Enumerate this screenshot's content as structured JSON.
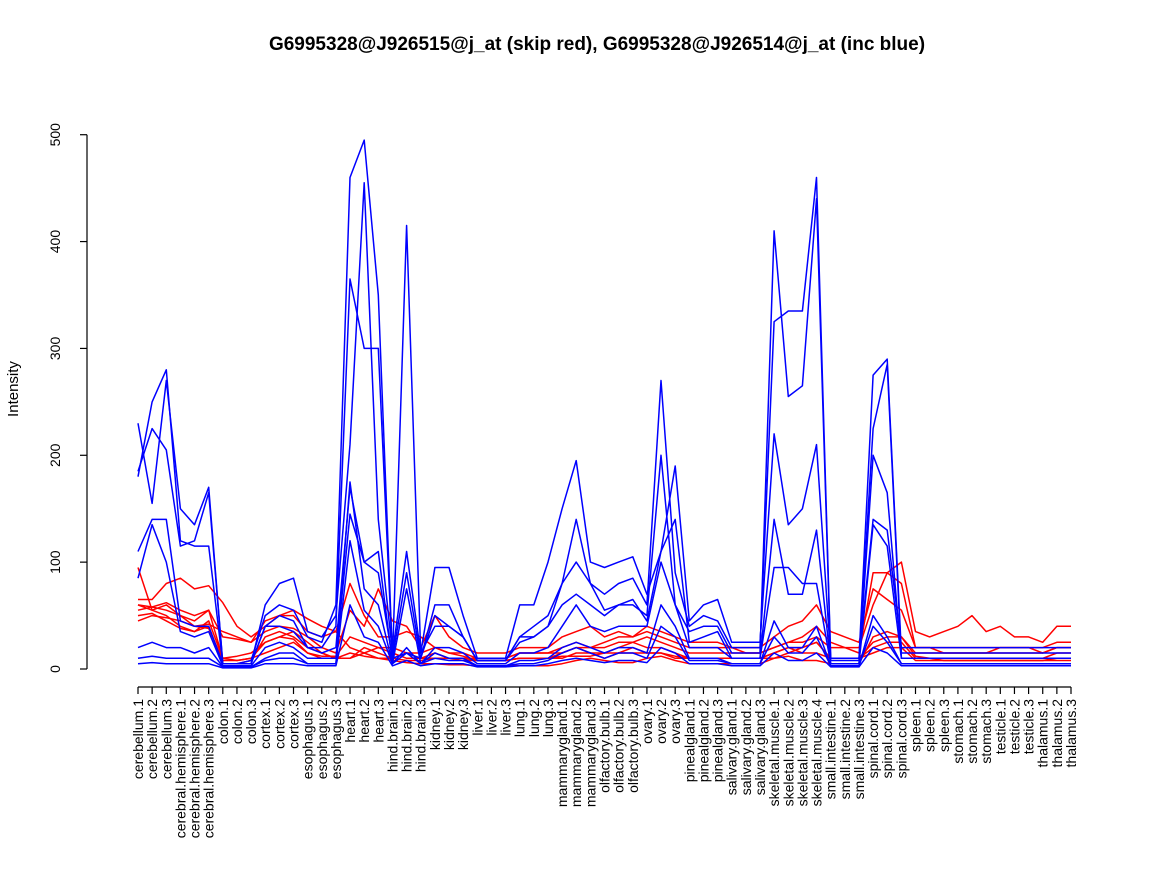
{
  "chart_data": {
    "type": "line",
    "title": "G6995328@J926515@j_at (skip red), G6995328@J926514@j_at (inc blue)",
    "xlabel": "",
    "ylabel": "Intensity",
    "ylim": [
      0,
      525
    ],
    "yticks": [
      0,
      100,
      200,
      300,
      400,
      500
    ],
    "grid": false,
    "legend": "none",
    "colors": {
      "skip": "#ff0000",
      "inc": "#0000ff",
      "axis": "#000000"
    },
    "categories": [
      "cerebellum.1",
      "cerebellum.2",
      "cerebellum.3",
      "cerebral.hemisphere.1",
      "cerebral.hemisphere.2",
      "cerebral.hemisphere.3",
      "colon.1",
      "colon.2",
      "colon.3",
      "cortex.1",
      "cortex.2",
      "cortex.3",
      "esophagus.1",
      "esophagus.2",
      "esophagus.3",
      "heart.1",
      "heart.2",
      "heart.3",
      "hind.brain.1",
      "hind.brain.2",
      "hind.brain.3",
      "kidney.1",
      "kidney.2",
      "kidney.3",
      "liver.1",
      "liver.2",
      "liver.3",
      "lung.1",
      "lung.2",
      "lung.3",
      "mammarygland.1",
      "mammarygland.2",
      "mammarygland.3",
      "olfactory.bulb.1",
      "olfactory.bulb.2",
      "olfactory.bulb.3",
      "ovary.1",
      "ovary.2",
      "ovary.3",
      "pinealgland.1",
      "pinealgland.2",
      "pinealgland.3",
      "salivary.gland.1",
      "salivary.gland.2",
      "salivary.gland.3",
      "skeletal.muscle.1",
      "skeletal.muscle.2",
      "skeletal.muscle.3",
      "skeletal.muscle.4",
      "small.intestine.1",
      "small.intestine.2",
      "small.intestine.3",
      "spinal.cord.1",
      "spinal.cord.2",
      "spinal.cord.3",
      "spleen.1",
      "spleen.2",
      "spleen.3",
      "stomach.1",
      "stomach.2",
      "stomach.3",
      "testicle.1",
      "testicle.2",
      "testicle.3",
      "thalamus.1",
      "thalamus.2",
      "thalamus.3"
    ],
    "series": [
      {
        "group": "skip",
        "values": [
          65,
          65,
          80,
          85,
          75,
          78,
          62,
          40,
          30,
          40,
          50,
          55,
          47,
          40,
          35,
          20,
          15,
          10,
          8,
          6,
          5,
          5,
          4,
          4,
          3,
          3,
          3,
          3,
          3,
          3,
          5,
          8,
          10,
          8,
          6,
          6,
          10,
          12,
          8,
          5,
          5,
          5,
          5,
          5,
          5,
          10,
          12,
          8,
          8,
          5,
          5,
          5,
          30,
          35,
          30,
          12,
          10,
          8,
          8,
          8,
          8,
          8,
          8,
          8,
          8,
          8,
          8
        ]
      },
      {
        "group": "skip",
        "values": [
          55,
          58,
          55,
          50,
          45,
          55,
          30,
          28,
          25,
          45,
          50,
          50,
          35,
          30,
          35,
          80,
          50,
          30,
          30,
          35,
          30,
          20,
          15,
          12,
          8,
          8,
          8,
          10,
          10,
          10,
          15,
          20,
          20,
          25,
          30,
          30,
          35,
          30,
          25,
          20,
          20,
          20,
          20,
          15,
          15,
          20,
          25,
          30,
          40,
          25,
          20,
          15,
          90,
          90,
          100,
          35,
          30,
          35,
          40,
          50,
          35,
          40,
          30,
          30,
          25,
          40,
          40
        ]
      },
      {
        "group": "skip",
        "values": [
          45,
          50,
          48,
          45,
          40,
          42,
          35,
          30,
          25,
          35,
          40,
          38,
          30,
          20,
          15,
          55,
          40,
          75,
          45,
          40,
          20,
          50,
          30,
          20,
          15,
          15,
          15,
          20,
          20,
          20,
          30,
          35,
          40,
          30,
          35,
          30,
          40,
          35,
          30,
          25,
          25,
          25,
          20,
          20,
          20,
          30,
          40,
          45,
          60,
          35,
          30,
          25,
          75,
          65,
          55,
          20,
          20,
          15,
          15,
          15,
          15,
          20,
          20,
          20,
          15,
          20,
          20
        ]
      },
      {
        "group": "skip",
        "values": [
          60,
          55,
          50,
          40,
          35,
          45,
          10,
          8,
          10,
          15,
          20,
          25,
          15,
          10,
          10,
          10,
          20,
          15,
          10,
          15,
          10,
          10,
          10,
          10,
          10,
          10,
          10,
          15,
          15,
          15,
          15,
          20,
          15,
          15,
          20,
          25,
          20,
          20,
          15,
          10,
          10,
          10,
          10,
          10,
          10,
          15,
          20,
          15,
          15,
          10,
          10,
          10,
          20,
          25,
          25,
          10,
          10,
          10,
          10,
          10,
          10,
          10,
          10,
          10,
          10,
          15,
          15
        ]
      },
      {
        "group": "skip",
        "values": [
          95,
          55,
          60,
          50,
          40,
          38,
          8,
          8,
          10,
          25,
          30,
          35,
          25,
          15,
          10,
          10,
          15,
          20,
          15,
          10,
          10,
          15,
          10,
          10,
          8,
          8,
          8,
          10,
          10,
          10,
          10,
          15,
          15,
          10,
          15,
          20,
          15,
          15,
          10,
          10,
          10,
          10,
          10,
          10,
          10,
          10,
          15,
          20,
          25,
          10,
          10,
          10,
          15,
          20,
          20,
          8,
          8,
          8,
          8,
          8,
          8,
          8,
          8,
          8,
          8,
          10,
          10
        ]
      },
      {
        "group": "skip",
        "values": [
          50,
          52,
          45,
          38,
          35,
          40,
          5,
          5,
          8,
          30,
          35,
          30,
          20,
          15,
          10,
          15,
          12,
          10,
          10,
          8,
          8,
          10,
          10,
          8,
          8,
          8,
          8,
          10,
          10,
          10,
          12,
          12,
          12,
          15,
          15,
          15,
          15,
          15,
          12,
          10,
          10,
          10,
          10,
          10,
          10,
          15,
          20,
          20,
          25,
          10,
          10,
          10,
          25,
          30,
          30,
          15,
          15,
          15,
          15,
          15,
          15,
          15,
          15,
          15,
          15,
          20,
          20
        ]
      },
      {
        "group": "skip",
        "values": [
          60,
          58,
          62,
          55,
          50,
          55,
          10,
          12,
          15,
          25,
          30,
          28,
          15,
          12,
          12,
          30,
          25,
          20,
          20,
          15,
          15,
          20,
          15,
          15,
          10,
          10,
          10,
          15,
          15,
          15,
          20,
          25,
          20,
          20,
          25,
          25,
          30,
          25,
          20,
          15,
          15,
          15,
          15,
          15,
          15,
          20,
          25,
          25,
          30,
          20,
          20,
          20,
          60,
          90,
          80,
          20,
          20,
          20,
          20,
          20,
          20,
          20,
          20,
          20,
          20,
          25,
          25
        ]
      },
      {
        "group": "inc",
        "values": [
          230,
          155,
          270,
          150,
          135,
          170,
          5,
          5,
          8,
          50,
          60,
          55,
          30,
          25,
          60,
          460,
          495,
          350,
          10,
          15,
          10,
          50,
          40,
          30,
          8,
          8,
          8,
          30,
          40,
          50,
          80,
          100,
          80,
          70,
          80,
          85,
          60,
          270,
          90,
          40,
          50,
          45,
          20,
          20,
          20,
          325,
          335,
          335,
          460,
          10,
          10,
          10,
          275,
          290,
          15,
          15,
          15,
          15,
          15,
          15,
          15,
          15,
          15,
          15,
          15,
          15,
          15
        ]
      },
      {
        "group": "inc",
        "values": [
          180,
          250,
          280,
          120,
          115,
          115,
          5,
          5,
          5,
          40,
          40,
          35,
          20,
          20,
          40,
          365,
          300,
          300,
          10,
          415,
          15,
          40,
          40,
          30,
          8,
          8,
          8,
          25,
          30,
          40,
          60,
          70,
          60,
          50,
          60,
          60,
          50,
          200,
          60,
          35,
          40,
          40,
          15,
          15,
          15,
          410,
          255,
          265,
          440,
          8,
          8,
          8,
          225,
          285,
          10,
          10,
          10,
          10,
          10,
          10,
          10,
          10,
          10,
          10,
          10,
          10,
          10
        ]
      },
      {
        "group": "inc",
        "values": [
          185,
          225,
          205,
          115,
          120,
          165,
          5,
          5,
          5,
          60,
          80,
          85,
          35,
          30,
          50,
          210,
          455,
          140,
          15,
          110,
          15,
          95,
          95,
          50,
          10,
          10,
          10,
          60,
          60,
          100,
          150,
          195,
          100,
          95,
          100,
          105,
          70,
          110,
          190,
          45,
          60,
          65,
          25,
          25,
          25,
          220,
          135,
          150,
          210,
          10,
          10,
          10,
          140,
          130,
          20,
          20,
          20,
          20,
          20,
          20,
          20,
          20,
          20,
          20,
          20,
          20,
          20
        ]
      },
      {
        "group": "inc",
        "values": [
          110,
          140,
          140,
          45,
          40,
          40,
          5,
          5,
          5,
          40,
          50,
          45,
          20,
          15,
          20,
          170,
          100,
          90,
          10,
          90,
          10,
          60,
          60,
          30,
          8,
          8,
          8,
          30,
          30,
          40,
          80,
          140,
          80,
          55,
          60,
          65,
          45,
          110,
          140,
          25,
          30,
          35,
          10,
          10,
          10,
          140,
          70,
          70,
          130,
          5,
          5,
          5,
          200,
          165,
          10,
          10,
          10,
          10,
          10,
          10,
          10,
          10,
          10,
          10,
          10,
          10,
          10
        ]
      },
      {
        "group": "inc",
        "values": [
          85,
          135,
          100,
          35,
          30,
          35,
          3,
          3,
          3,
          20,
          25,
          20,
          10,
          10,
          10,
          145,
          100,
          110,
          5,
          75,
          5,
          20,
          20,
          15,
          5,
          5,
          5,
          15,
          15,
          20,
          40,
          60,
          40,
          35,
          40,
          40,
          40,
          100,
          60,
          20,
          20,
          20,
          10,
          10,
          10,
          95,
          95,
          80,
          80,
          5,
          5,
          5,
          135,
          115,
          10,
          10,
          10,
          10,
          10,
          10,
          10,
          10,
          10,
          10,
          10,
          10,
          10
        ]
      },
      {
        "group": "inc",
        "values": [
          20,
          25,
          20,
          20,
          15,
          20,
          2,
          2,
          2,
          10,
          15,
          15,
          5,
          5,
          5,
          175,
          75,
          60,
          5,
          20,
          5,
          15,
          10,
          10,
          3,
          3,
          3,
          8,
          8,
          10,
          20,
          25,
          20,
          15,
          20,
          20,
          15,
          60,
          40,
          10,
          10,
          10,
          5,
          5,
          5,
          45,
          20,
          20,
          40,
          3,
          3,
          3,
          50,
          30,
          5,
          5,
          5,
          5,
          5,
          5,
          5,
          5,
          5,
          5,
          5,
          5,
          5
        ]
      },
      {
        "group": "inc",
        "values": [
          10,
          12,
          10,
          10,
          10,
          10,
          2,
          2,
          2,
          8,
          10,
          10,
          5,
          5,
          5,
          120,
          55,
          40,
          5,
          15,
          5,
          10,
          8,
          8,
          3,
          3,
          3,
          5,
          5,
          8,
          15,
          20,
          15,
          10,
          15,
          15,
          10,
          40,
          30,
          8,
          8,
          8,
          5,
          5,
          5,
          30,
          15,
          15,
          30,
          3,
          3,
          3,
          40,
          25,
          5,
          5,
          5,
          5,
          5,
          5,
          5,
          5,
          5,
          5,
          5,
          5,
          5
        ]
      },
      {
        "group": "inc",
        "values": [
          5,
          6,
          5,
          5,
          5,
          5,
          1,
          1,
          1,
          5,
          5,
          5,
          3,
          3,
          3,
          60,
          30,
          25,
          3,
          8,
          3,
          5,
          5,
          5,
          2,
          2,
          2,
          3,
          3,
          5,
          8,
          10,
          8,
          6,
          8,
          8,
          6,
          20,
          15,
          5,
          5,
          5,
          3,
          3,
          3,
          15,
          8,
          8,
          15,
          2,
          2,
          2,
          20,
          15,
          3,
          3,
          3,
          3,
          3,
          3,
          3,
          3,
          3,
          3,
          3,
          3,
          3
        ]
      }
    ]
  }
}
